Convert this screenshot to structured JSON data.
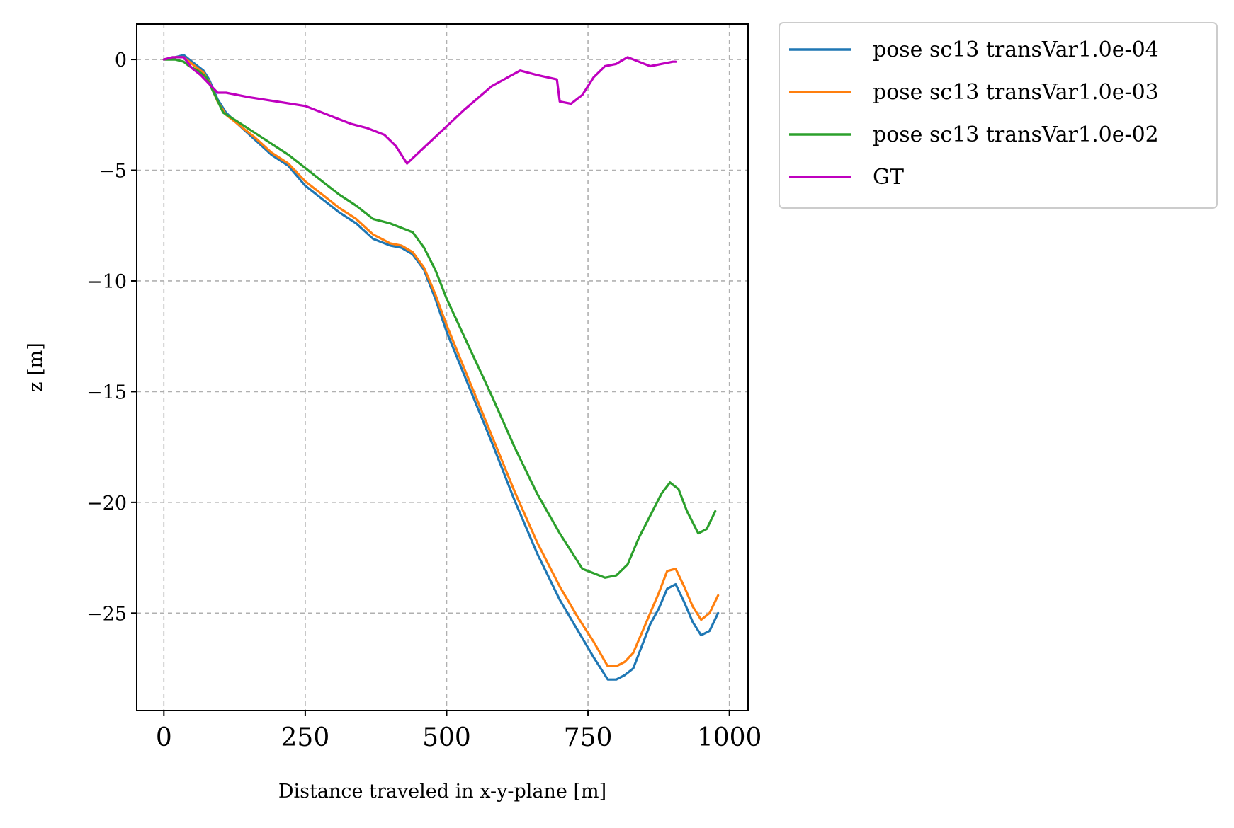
{
  "chart_data": {
    "type": "line",
    "xlabel": "Distance traveled in x-y-plane [m]",
    "ylabel": "z [m]",
    "xlim": [
      -48,
      1033
    ],
    "ylim": [
      -29.4,
      1.6
    ],
    "x_ticks": [
      0,
      250,
      500,
      750,
      1000
    ],
    "x_tick_labels": [
      "0",
      "250",
      "500",
      "750",
      "1000"
    ],
    "y_ticks": [
      0,
      -5,
      -10,
      -15,
      -20,
      -25
    ],
    "y_tick_labels": [
      "0",
      "−5",
      "−10",
      "−15",
      "−20",
      "−25"
    ],
    "grid": true,
    "legend_position": "outside upper right",
    "series": [
      {
        "name": "pose sc13 transVar1.0e-04",
        "color": "#1f77b4",
        "points": [
          [
            0,
            0
          ],
          [
            20,
            0.1
          ],
          [
            35,
            0.2
          ],
          [
            45,
            0
          ],
          [
            60,
            -0.3
          ],
          [
            70,
            -0.5
          ],
          [
            80,
            -0.9
          ],
          [
            95,
            -1.8
          ],
          [
            110,
            -2.4
          ],
          [
            130,
            -2.9
          ],
          [
            160,
            -3.6
          ],
          [
            190,
            -4.3
          ],
          [
            220,
            -4.8
          ],
          [
            250,
            -5.7
          ],
          [
            280,
            -6.3
          ],
          [
            310,
            -6.9
          ],
          [
            340,
            -7.4
          ],
          [
            370,
            -8.1
          ],
          [
            400,
            -8.4
          ],
          [
            420,
            -8.5
          ],
          [
            440,
            -8.8
          ],
          [
            460,
            -9.5
          ],
          [
            480,
            -10.8
          ],
          [
            500,
            -12.3
          ],
          [
            540,
            -14.8
          ],
          [
            580,
            -17.3
          ],
          [
            620,
            -19.9
          ],
          [
            660,
            -22.3
          ],
          [
            700,
            -24.4
          ],
          [
            730,
            -25.7
          ],
          [
            760,
            -27.0
          ],
          [
            785,
            -28.0
          ],
          [
            800,
            -28.0
          ],
          [
            815,
            -27.8
          ],
          [
            830,
            -27.5
          ],
          [
            845,
            -26.5
          ],
          [
            860,
            -25.5
          ],
          [
            875,
            -24.8
          ],
          [
            890,
            -23.9
          ],
          [
            905,
            -23.7
          ],
          [
            920,
            -24.5
          ],
          [
            935,
            -25.4
          ],
          [
            950,
            -26.0
          ],
          [
            965,
            -25.8
          ],
          [
            980,
            -25.0
          ]
        ]
      },
      {
        "name": "pose sc13 transVar1.0e-03",
        "color": "#ff7f0e",
        "points": [
          [
            0,
            0
          ],
          [
            20,
            0.1
          ],
          [
            35,
            0.1
          ],
          [
            45,
            -0.1
          ],
          [
            60,
            -0.4
          ],
          [
            70,
            -0.6
          ],
          [
            80,
            -1.0
          ],
          [
            95,
            -1.9
          ],
          [
            110,
            -2.5
          ],
          [
            130,
            -2.9
          ],
          [
            160,
            -3.5
          ],
          [
            190,
            -4.2
          ],
          [
            220,
            -4.7
          ],
          [
            250,
            -5.5
          ],
          [
            280,
            -6.1
          ],
          [
            310,
            -6.7
          ],
          [
            340,
            -7.2
          ],
          [
            370,
            -7.9
          ],
          [
            400,
            -8.3
          ],
          [
            420,
            -8.4
          ],
          [
            440,
            -8.7
          ],
          [
            460,
            -9.4
          ],
          [
            480,
            -10.6
          ],
          [
            500,
            -12.0
          ],
          [
            540,
            -14.5
          ],
          [
            580,
            -17.0
          ],
          [
            620,
            -19.5
          ],
          [
            660,
            -21.8
          ],
          [
            700,
            -23.8
          ],
          [
            730,
            -25.1
          ],
          [
            760,
            -26.3
          ],
          [
            785,
            -27.4
          ],
          [
            800,
            -27.4
          ],
          [
            815,
            -27.2
          ],
          [
            830,
            -26.8
          ],
          [
            845,
            -25.9
          ],
          [
            860,
            -25.0
          ],
          [
            875,
            -24.1
          ],
          [
            890,
            -23.1
          ],
          [
            905,
            -23.0
          ],
          [
            920,
            -23.8
          ],
          [
            935,
            -24.7
          ],
          [
            950,
            -25.3
          ],
          [
            965,
            -25.0
          ],
          [
            980,
            -24.2
          ]
        ]
      },
      {
        "name": "pose sc13 transVar1.0e-02",
        "color": "#2ca02c",
        "points": [
          [
            0,
            0
          ],
          [
            20,
            0
          ],
          [
            35,
            -0.1
          ],
          [
            45,
            -0.3
          ],
          [
            60,
            -0.5
          ],
          [
            75,
            -0.8
          ],
          [
            90,
            -1.6
          ],
          [
            105,
            -2.4
          ],
          [
            130,
            -2.8
          ],
          [
            160,
            -3.3
          ],
          [
            190,
            -3.8
          ],
          [
            220,
            -4.3
          ],
          [
            250,
            -4.9
          ],
          [
            280,
            -5.5
          ],
          [
            310,
            -6.1
          ],
          [
            340,
            -6.6
          ],
          [
            370,
            -7.2
          ],
          [
            400,
            -7.4
          ],
          [
            420,
            -7.6
          ],
          [
            440,
            -7.8
          ],
          [
            460,
            -8.5
          ],
          [
            480,
            -9.5
          ],
          [
            500,
            -10.8
          ],
          [
            540,
            -13.0
          ],
          [
            580,
            -15.2
          ],
          [
            620,
            -17.5
          ],
          [
            660,
            -19.6
          ],
          [
            700,
            -21.4
          ],
          [
            740,
            -23.0
          ],
          [
            780,
            -23.4
          ],
          [
            800,
            -23.3
          ],
          [
            820,
            -22.8
          ],
          [
            840,
            -21.6
          ],
          [
            860,
            -20.6
          ],
          [
            880,
            -19.6
          ],
          [
            895,
            -19.1
          ],
          [
            910,
            -19.4
          ],
          [
            925,
            -20.4
          ],
          [
            945,
            -21.4
          ],
          [
            960,
            -21.2
          ],
          [
            975,
            -20.4
          ]
        ]
      },
      {
        "name": "GT",
        "color": "#bf00bf",
        "points": [
          [
            0,
            0
          ],
          [
            15,
            0.1
          ],
          [
            35,
            0.1
          ],
          [
            50,
            -0.4
          ],
          [
            65,
            -0.7
          ],
          [
            80,
            -1.1
          ],
          [
            95,
            -1.5
          ],
          [
            110,
            -1.5
          ],
          [
            150,
            -1.7
          ],
          [
            200,
            -1.9
          ],
          [
            250,
            -2.1
          ],
          [
            300,
            -2.6
          ],
          [
            330,
            -2.9
          ],
          [
            360,
            -3.1
          ],
          [
            390,
            -3.4
          ],
          [
            410,
            -3.9
          ],
          [
            430,
            -4.7
          ],
          [
            480,
            -3.5
          ],
          [
            530,
            -2.3
          ],
          [
            580,
            -1.2
          ],
          [
            630,
            -0.5
          ],
          [
            660,
            -0.7
          ],
          [
            695,
            -0.9
          ],
          [
            700,
            -1.9
          ],
          [
            720,
            -2.0
          ],
          [
            740,
            -1.6
          ],
          [
            760,
            -0.8
          ],
          [
            780,
            -0.3
          ],
          [
            800,
            -0.2
          ],
          [
            820,
            0.1
          ],
          [
            840,
            -0.1
          ],
          [
            860,
            -0.3
          ],
          [
            880,
            -0.2
          ],
          [
            900,
            -0.1
          ],
          [
            905,
            -0.1
          ]
        ]
      }
    ]
  }
}
